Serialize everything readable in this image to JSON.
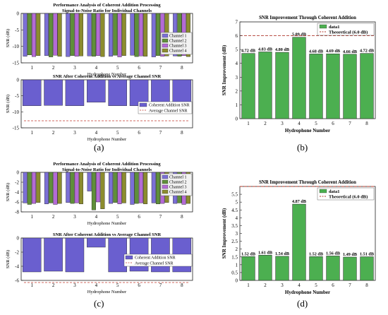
{
  "panel_labels": {
    "a": "(a)",
    "b": "(b)",
    "c": "(c)",
    "d": "(d)"
  },
  "colors": {
    "channel1": "#7b6fd6",
    "channel2": "#5f8f3a",
    "channel3": "#b46ad6",
    "channel4": "#8c8c2e",
    "channel_red": "#c0392b",
    "bar_blue": "#6a5fcf",
    "bar_green": "#4caf50",
    "bar_edge": "#222222",
    "theory_line": "#b03a2e",
    "avg_line": "#c0392b"
  },
  "chart_data": [
    {
      "id": "a_top",
      "type": "bar",
      "suptitle": "Performance Analysis of Coherent Addition Processing",
      "title": "Signal-to-Noise Ratio for Individual Channels",
      "xlabel": "Hydrophone Number",
      "ylabel": "SNR (dB)",
      "categories": [
        "1",
        "2",
        "3",
        "4",
        "5",
        "6",
        "7",
        "8"
      ],
      "yticks": [
        0,
        -5,
        -10,
        -15
      ],
      "ylim": [
        -15,
        0
      ],
      "legend": [
        "Channel 1",
        "Channel 2",
        "Channel 3",
        "Channel 4"
      ],
      "legend_position": "top-right",
      "series": [
        {
          "name": "Channel 1",
          "values": [
            -13,
            -12.8,
            -13.1,
            -12.9,
            -13,
            -12.7,
            -13.2,
            -12.9
          ]
        },
        {
          "name": "Channel 2",
          "values": [
            -12.6,
            -13.2,
            -12.8,
            -13,
            -12.7,
            -13.1,
            -12.8,
            -13
          ]
        },
        {
          "name": "Channel 3",
          "values": [
            -13.1,
            -12.7,
            -13,
            -12.8,
            -13.2,
            -12.9,
            -13,
            -12.8
          ]
        },
        {
          "name": "Channel 4",
          "values": [
            -12.8,
            -13,
            -12.9,
            -13.1,
            -12.8,
            -13,
            -12.9,
            -13.1
          ]
        }
      ]
    },
    {
      "id": "a_bottom",
      "type": "bar",
      "title": "SNR After Coherent Addition vs Average Channel SNR",
      "xlabel": "Hydrophone Number",
      "ylabel": "SNR (dB)",
      "categories": [
        "1",
        "2",
        "3",
        "4",
        "5",
        "6",
        "7",
        "8"
      ],
      "yticks": [
        0,
        -5,
        -10,
        -15
      ],
      "ylim": [
        -15,
        0
      ],
      "legend": [
        "Coherent Addition SNR",
        "Average Channel SNR"
      ],
      "legend_position": "right",
      "series": [
        {
          "name": "Coherent Addition SNR",
          "values": [
            -8.1,
            -8.0,
            -8.1,
            -7.0,
            -8.1,
            -8.1,
            -8.2,
            -8.1
          ]
        },
        {
          "name": "Average Channel SNR",
          "values": [
            -12.8,
            -12.8,
            -12.8,
            -12.8,
            -12.8,
            -12.8,
            -12.8,
            -12.8
          ]
        }
      ]
    },
    {
      "id": "b",
      "type": "bar",
      "title": "SNR Improvement Through Coherent Addition",
      "xlabel": "Hydrophone Number",
      "ylabel": "SNR Improvement (dB)",
      "categories": [
        "1",
        "2",
        "3",
        "4",
        "5",
        "6",
        "7",
        "8"
      ],
      "yticks": [
        0,
        1,
        2,
        3,
        4,
        5,
        6,
        7
      ],
      "ylim": [
        0,
        7
      ],
      "legend": [
        "data1",
        "Theoretical (6.0 dB)"
      ],
      "legend_position": "top-right",
      "values": [
        4.72,
        4.83,
        4.8,
        5.89,
        4.68,
        4.69,
        4.66,
        4.72
      ],
      "data_labels": [
        "4.72 dB",
        "4.83 dB",
        "4.80 dB",
        "5.89 dB",
        "4.68 dB",
        "4.69 dB",
        "4.66 dB",
        "4.72 dB"
      ],
      "theoretical": 6.0
    },
    {
      "id": "c_top",
      "type": "bar",
      "suptitle": "Performance Analysis of Coherent Addition Processing",
      "title": "Signal-to-Noise Ratio for Individual Channels",
      "xlabel": "Hydrophone Number",
      "ylabel": "SNR (dB)",
      "categories": [
        "1",
        "2",
        "3",
        "4",
        "5",
        "6",
        "7",
        "8"
      ],
      "yticks": [
        0,
        -2,
        -4,
        -6,
        -8
      ],
      "ylim": [
        -8,
        0
      ],
      "legend": [
        "Channel 1",
        "Channel 2",
        "Channel 3",
        "Channel 4"
      ],
      "legend_position": "top-right",
      "series": [
        {
          "name": "Channel 1",
          "values": [
            -6.2,
            -6.4,
            -6.1,
            -3.8,
            -6.3,
            -6.5,
            -6.2,
            -6.3
          ]
        },
        {
          "name": "Channel 2",
          "values": [
            -6.5,
            -6.2,
            -6.3,
            -7.6,
            -6.1,
            -6.3,
            -6.4,
            -6.2
          ]
        },
        {
          "name": "Channel 3",
          "values": [
            -6.3,
            -6.5,
            -6.2,
            -6.0,
            -6.4,
            -6.2,
            -6.3,
            -6.5
          ]
        },
        {
          "name": "Channel 4",
          "values": [
            -6.1,
            -6.3,
            -6.4,
            -7.4,
            -6.2,
            -6.4,
            -6.1,
            -6.3
          ]
        }
      ]
    },
    {
      "id": "c_bottom",
      "type": "bar",
      "title": "SNR After Coherent Addition vs Average Channel SNR",
      "xlabel": "Hydrophone Number",
      "ylabel": "SNR (dB)",
      "categories": [
        "1",
        "2",
        "3",
        "4",
        "5",
        "6",
        "7",
        "8"
      ],
      "yticks": [
        0,
        -2,
        -4,
        -6
      ],
      "ylim": [
        -6,
        0
      ],
      "legend": [
        "Coherent Addition SNR",
        "Average Channel SNR"
      ],
      "legend_position": "right",
      "series": [
        {
          "name": "Coherent Addition SNR",
          "values": [
            -4.8,
            -4.7,
            -4.8,
            -1.3,
            -4.8,
            -4.7,
            -4.8,
            -4.8
          ]
        },
        {
          "name": "Average Channel SNR",
          "values": [
            -6.3,
            -6.3,
            -6.3,
            -6.3,
            -6.3,
            -6.3,
            -6.3,
            -6.3
          ]
        }
      ]
    },
    {
      "id": "d",
      "type": "bar",
      "title": "SNR Improvement Through Coherent Addition",
      "xlabel": "Hydrophone Number",
      "ylabel": "SNR Improvement (dB)",
      "categories": [
        "1",
        "2",
        "3",
        "4",
        "5",
        "6",
        "7",
        "8"
      ],
      "yticks": [
        0,
        0.5,
        1,
        1.5,
        2,
        2.5,
        3,
        3.5,
        4,
        4.5,
        5,
        5.5
      ],
      "ylim": [
        0,
        6
      ],
      "legend": [
        "data1",
        "Theoretical (6.0 dB)"
      ],
      "legend_position": "top-right",
      "values": [
        1.52,
        1.61,
        1.54,
        4.87,
        1.52,
        1.56,
        1.49,
        1.51
      ],
      "data_labels": [
        "1.52 dB",
        "1.61 dB",
        "1.54 dB",
        "4.87 dB",
        "1.52 dB",
        "1.56 dB",
        "1.49 dB",
        "1.51 dB"
      ],
      "theoretical": 6.0
    }
  ]
}
